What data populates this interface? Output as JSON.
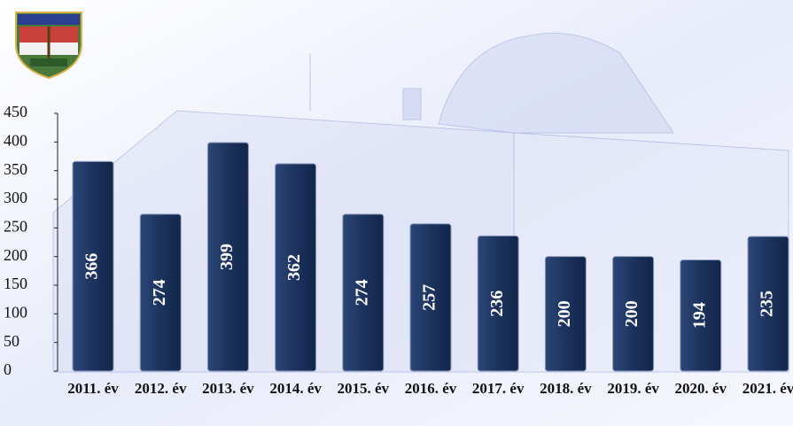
{
  "chart_data": {
    "type": "bar",
    "categories": [
      "2011. év",
      "2012. év",
      "2013. év",
      "2014. év",
      "2015. év",
      "2016. év",
      "2017. év",
      "2018. év",
      "2019. év",
      "2020. év",
      "2021. év"
    ],
    "values": [
      366,
      274,
      399,
      362,
      274,
      257,
      236,
      200,
      200,
      194,
      235
    ],
    "color": "#1c335e",
    "ylim": [
      0,
      450
    ],
    "yticks": [
      0,
      50,
      100,
      150,
      200,
      250,
      300,
      350,
      400,
      450
    ]
  }
}
